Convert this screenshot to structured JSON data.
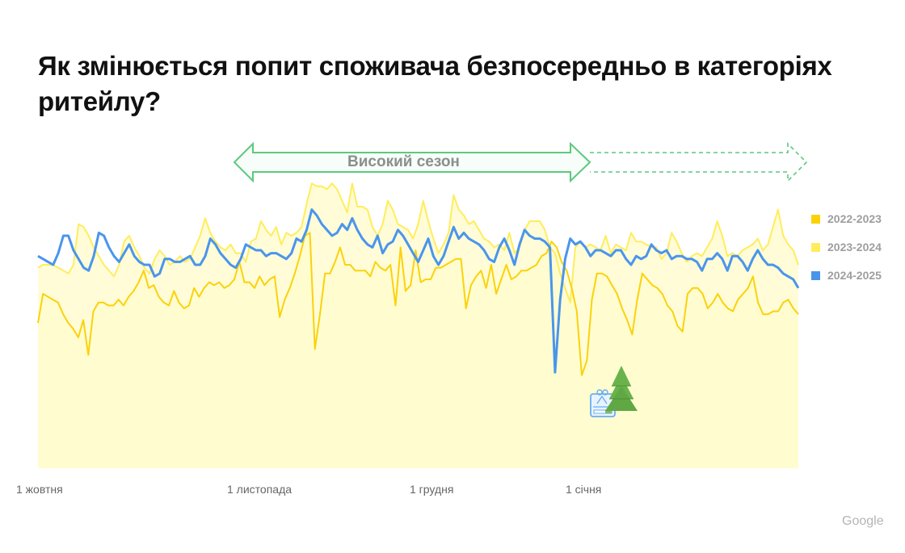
{
  "title": "Як змінюється попит споживача безпосередньо в категоріях ритейлу?",
  "annotation": {
    "label": "Високий сезон",
    "arrow_color": "#5cc97e",
    "solid_span": [
      "late October",
      "early January"
    ],
    "dashed_extension": "January – end of period"
  },
  "legend": [
    {
      "label": "2022-2023",
      "color": "#fbd20a"
    },
    {
      "label": "2023-2024",
      "color": "#ffed5c"
    },
    {
      "label": "2024-2025",
      "color": "#4a95ec"
    }
  ],
  "x_ticks": [
    "1 жовтня",
    "1 листопада",
    "1 грудня",
    "1 січня"
  ],
  "icons": {
    "christmas_tree": "christmas-tree-icon",
    "calendar": "calendar-gift-icon"
  },
  "brand": "Google",
  "chart_data": {
    "type": "line",
    "title": "Як змінюється попит споживача безпосередньо в категоріях ритейлу?",
    "xlabel": "",
    "ylabel": "",
    "x_tick_labels": [
      "1 жовтня",
      "1 листопада",
      "1 грудня",
      "1 січня"
    ],
    "x_tick_positions_index": [
      0,
      41,
      76,
      107
    ],
    "y_axis": "relative demand index (unlabeled; 0 = baseline, 100 = top of plot)",
    "ylim": [
      0,
      100
    ],
    "grid": false,
    "legend_position": "right",
    "annotations": [
      {
        "text": "Високий сезон",
        "type": "double-arrow",
        "from_index": 38,
        "to_index": 108
      },
      {
        "text": "",
        "type": "dashed-arrow-extension",
        "from_index": 108,
        "to_index": 150
      },
      {
        "type": "icon",
        "name": "christmas-tree",
        "at_index": 111
      },
      {
        "type": "icon",
        "name": "calendar-gift",
        "at_index": 109
      }
    ],
    "series": [
      {
        "name": "2022-2023",
        "color": "#fbd20a",
        "values": [
          50,
          60,
          59,
          58,
          57,
          53,
          50,
          48,
          45,
          51,
          39,
          54,
          57,
          57,
          56,
          56,
          58,
          56,
          59,
          61,
          64,
          68,
          62,
          63,
          59,
          57,
          56,
          61,
          57,
          55,
          56,
          62,
          59,
          62,
          64,
          63,
          64,
          62,
          63,
          65,
          71,
          64,
          64,
          62,
          66,
          63,
          65,
          66,
          52,
          58,
          62,
          67,
          73,
          80,
          81,
          41,
          53,
          67,
          67,
          71,
          76,
          70,
          70,
          68,
          68,
          68,
          66,
          71,
          69,
          68,
          70,
          56,
          76,
          61,
          63,
          75,
          64,
          65,
          65,
          69,
          69,
          70,
          71,
          72,
          72,
          55,
          63,
          66,
          68,
          62,
          70,
          60,
          65,
          70,
          65,
          66,
          68,
          68,
          69,
          70,
          73,
          74,
          78,
          76,
          71,
          68,
          62,
          54,
          32,
          37,
          58,
          67,
          67,
          66,
          63,
          60,
          55,
          51,
          46,
          58,
          67,
          65,
          63,
          62,
          60,
          56,
          54,
          49,
          47,
          60,
          62,
          62,
          60,
          55,
          57,
          60,
          57,
          55,
          54,
          58,
          60,
          62,
          66,
          57,
          53,
          53,
          54,
          54,
          57,
          58,
          55,
          53
        ]
      },
      {
        "name": "2023-2024",
        "color": "#ffed5c",
        "values": [
          69,
          70,
          70,
          70,
          69,
          68,
          67,
          70,
          84,
          83,
          80,
          76,
          73,
          70,
          68,
          66,
          70,
          78,
          80,
          76,
          73,
          69,
          67,
          72,
          75,
          73,
          70,
          71,
          73,
          71,
          72,
          76,
          80,
          86,
          81,
          78,
          76,
          75,
          77,
          74,
          74,
          71,
          78,
          79,
          85,
          82,
          80,
          83,
          77,
          81,
          80,
          81,
          83,
          91,
          98,
          97,
          97,
          96,
          98,
          96,
          92,
          88,
          98,
          90,
          90,
          89,
          83,
          80,
          84,
          92,
          89,
          84,
          83,
          82,
          79,
          84,
          92,
          85,
          79,
          74,
          77,
          81,
          94,
          89,
          87,
          84,
          85,
          82,
          79,
          78,
          76,
          77,
          75,
          81,
          74,
          76,
          82,
          85,
          85,
          85,
          82,
          76,
          74,
          67,
          62,
          57,
          76,
          78,
          76,
          77,
          76,
          75,
          80,
          74,
          77,
          76,
          75,
          81,
          78,
          78,
          77,
          76,
          76,
          72,
          74,
          81,
          78,
          74,
          71,
          73,
          74,
          73,
          76,
          79,
          85,
          80,
          73,
          74,
          73,
          75,
          76,
          77,
          79,
          75,
          77,
          83,
          89,
          80,
          77,
          75,
          70
        ]
      },
      {
        "name": "2024-2025",
        "color": "#4a95ec",
        "values": [
          73,
          72,
          71,
          70,
          74,
          80,
          80,
          75,
          72,
          69,
          68,
          73,
          81,
          80,
          76,
          73,
          71,
          74,
          77,
          73,
          71,
          70,
          70,
          66,
          67,
          72,
          72,
          71,
          71,
          72,
          73,
          70,
          70,
          73,
          79,
          77,
          74,
          72,
          70,
          69,
          72,
          77,
          76,
          75,
          75,
          73,
          74,
          74,
          73,
          72,
          74,
          79,
          78,
          82,
          89,
          87,
          84,
          82,
          80,
          81,
          84,
          82,
          86,
          82,
          79,
          77,
          76,
          80,
          74,
          77,
          78,
          82,
          80,
          77,
          74,
          71,
          75,
          79,
          73,
          70,
          73,
          78,
          83,
          79,
          81,
          79,
          78,
          77,
          75,
          72,
          71,
          76,
          79,
          75,
          70,
          77,
          82,
          80,
          79,
          79,
          78,
          76,
          33,
          58,
          72,
          79,
          77,
          78,
          76,
          73,
          75,
          75,
          74,
          73,
          75,
          75,
          72,
          70,
          73,
          72,
          73,
          77,
          75,
          74,
          75,
          72,
          73,
          73,
          72,
          72,
          71,
          68,
          72,
          72,
          74,
          72,
          68,
          73,
          73,
          71,
          68,
          72,
          75,
          72,
          70,
          70,
          69,
          67,
          66,
          65,
          62
        ]
      }
    ]
  }
}
